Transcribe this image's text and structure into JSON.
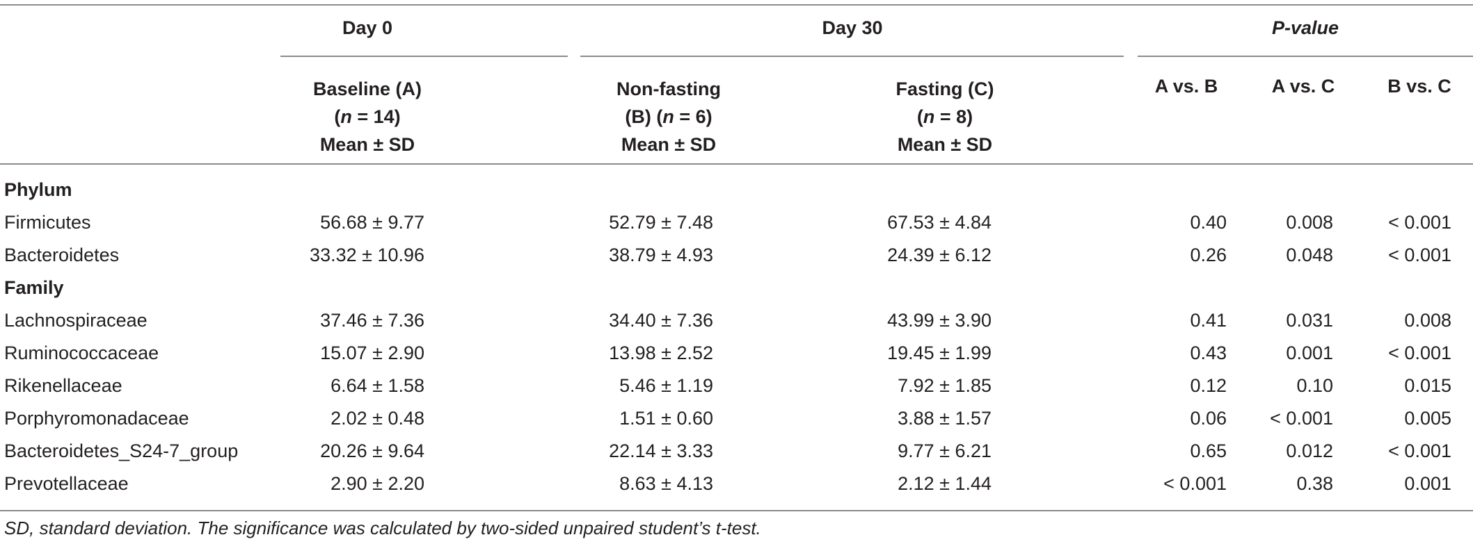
{
  "table": {
    "group_headers": {
      "day0": "Day 0",
      "day30": "Day 30",
      "pvalue": "P-value"
    },
    "columns": {
      "baseline": {
        "line1": "Baseline (A)",
        "n_prefix": "(",
        "n_var": "n",
        "n_suffix": " = 14)",
        "line3": "Mean ± SD"
      },
      "nonfasting": {
        "line1": "Non-fasting",
        "line2a": "(B) (",
        "n_var": "n",
        "line2b": " = 6)",
        "line3": "Mean ± SD"
      },
      "fasting": {
        "line1": "Fasting (C)",
        "n_prefix": "(",
        "n_var": "n",
        "n_suffix": " = 8)",
        "line3": "Mean ± SD"
      },
      "ab": "A vs. B",
      "ac": "A vs. C",
      "bc": "B vs. C"
    },
    "sections": [
      {
        "title": "Phylum",
        "rows": [
          {
            "name": "Firmicutes",
            "a": "56.68 ± 9.77",
            "b": "52.79 ± 7.48",
            "c": "67.53 ± 4.84",
            "ab": "0.40",
            "ac": "0.008",
            "bc": "< 0.001"
          },
          {
            "name": "Bacteroidetes",
            "a": "33.32 ± 10.96",
            "b": "38.79 ± 4.93",
            "c": "24.39 ± 6.12",
            "ab": "0.26",
            "ac": "0.048",
            "bc": "< 0.001"
          }
        ]
      },
      {
        "title": "Family",
        "rows": [
          {
            "name": "Lachnospiraceae",
            "a": "37.46 ± 7.36",
            "b": "34.40 ± 7.36",
            "c": "43.99 ± 3.90",
            "ab": "0.41",
            "ac": "0.031",
            "bc": "0.008"
          },
          {
            "name": "Ruminococcaceae",
            "a": "15.07 ± 2.90",
            "b": "13.98 ± 2.52",
            "c": "19.45 ± 1.99",
            "ab": "0.43",
            "ac": "0.001",
            "bc": "< 0.001"
          },
          {
            "name": "Rikenellaceae",
            "a": "6.64 ± 1.58",
            "b": "5.46 ± 1.19",
            "c": "7.92 ± 1.85",
            "ab": "0.12",
            "ac": "0.10",
            "bc": "0.015"
          },
          {
            "name": "Porphyromonadaceae",
            "a": "2.02 ± 0.48",
            "b": "1.51 ± 0.60",
            "c": "3.88 ± 1.57",
            "ab": "0.06",
            "ac": "< 0.001",
            "bc": "0.005"
          },
          {
            "name": "Bacteroidetes_S24-7_group",
            "a": "20.26 ± 9.64",
            "b": "22.14 ± 3.33",
            "c": "9.77 ± 6.21",
            "ab": "0.65",
            "ac": "0.012",
            "bc": "< 0.001"
          },
          {
            "name": "Prevotellaceae",
            "a": "2.90 ± 2.20",
            "b": "8.63 ± 4.13",
            "c": "2.12 ± 1.44",
            "ab": "< 0.001",
            "ac": "0.38",
            "bc": "0.001"
          }
        ]
      }
    ],
    "footnote": "SD, standard deviation. The significance was calculated by two-sided unpaired student’s t-test."
  }
}
